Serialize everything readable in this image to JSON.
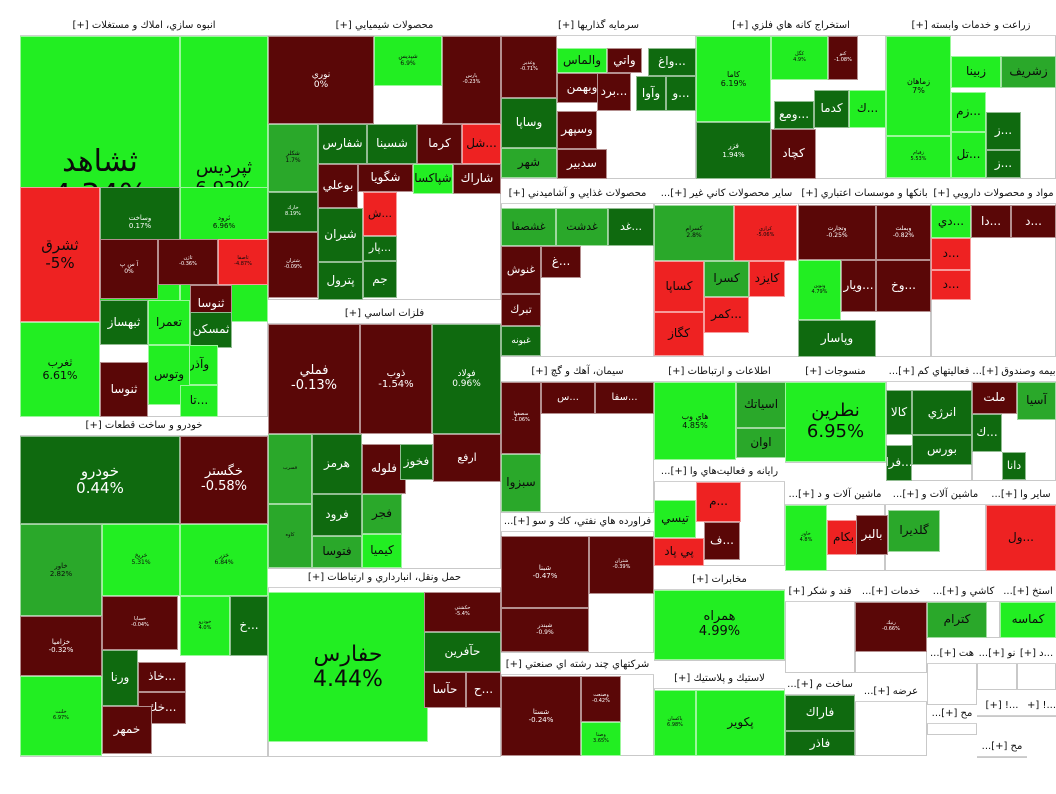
{
  "palette": {
    "bright_green": "#22ee22",
    "green": "#2aa82a",
    "dark_green": "#0f6a0f",
    "dark_red": "#5a0707",
    "red": "#ee2222",
    "mid_red": "#8f1010"
  },
  "sectors": [
    {
      "title": "انبوه سازي، املاك و مستغلات [+]",
      "tiles": [
        {
          "name": "ثشاهد",
          "change": "4.34%",
          "color": "bright_green"
        },
        {
          "name": "ثپرديس",
          "change": "6.92%",
          "color": "bright_green"
        },
        {
          "name": "وساخت",
          "change": "0.17%",
          "color": "dark_green"
        },
        {
          "name": "ثرود",
          "change": "6.96%",
          "color": "bright_green"
        },
        {
          "name": "ثشرق",
          "change": "-5%",
          "color": "red"
        },
        {
          "name": "آ س پ",
          "change": "0%",
          "color": "dark_red"
        },
        {
          "name": "ثنوسا",
          "change": "",
          "color": "dark_red"
        },
        {
          "name": "ثتران",
          "change": "",
          "color": "dark_red"
        },
        {
          "name": "تعمرا",
          "change": "",
          "color": "bright_green"
        },
        {
          "name": "ثمسكن",
          "change": "",
          "color": "dark_green"
        },
        {
          "name": "ثبهساز",
          "change": "",
          "color": "dark_green"
        },
        {
          "name": "ثغرب",
          "change": "6.61%",
          "color": "bright_green"
        },
        {
          "name": "وآذر",
          "change": "",
          "color": "bright_green"
        },
        {
          "name": "وتوس",
          "change": "",
          "color": "bright_green"
        },
        {
          "name": "ثنوسا",
          "change": "",
          "color": "dark_red"
        },
        {
          "name": "...تا",
          "change": "",
          "color": "bright_green"
        },
        {
          "name": "ثاژن",
          "change": "-0.36%",
          "color": "dark_red"
        },
        {
          "name": "ثاصفا",
          "change": "-4.87%",
          "color": "red"
        }
      ]
    },
    {
      "title": "محصولات شيميايي [+]",
      "tiles": [
        {
          "name": "نوري",
          "change": "0%",
          "color": "dark_red"
        },
        {
          "name": "شپديس",
          "change": "6.9%",
          "color": "bright_green"
        },
        {
          "name": "پارس",
          "change": "-0.23%",
          "color": "dark_red"
        },
        {
          "name": "شفارس",
          "change": "",
          "color": "dark_green"
        },
        {
          "name": "شسينا",
          "change": "",
          "color": "dark_green"
        },
        {
          "name": "كرما",
          "change": "",
          "color": "dark_red"
        },
        {
          "name": "...شل",
          "change": "",
          "color": "red"
        },
        {
          "name": "شكلر",
          "change": "1.7%",
          "color": "green"
        },
        {
          "name": "بوعلي",
          "change": "",
          "color": "dark_red"
        },
        {
          "name": "شگويا",
          "change": "",
          "color": "dark_red"
        },
        {
          "name": "شپاكسا",
          "change": "",
          "color": "bright_green"
        },
        {
          "name": "شاراك",
          "change": "",
          "color": "dark_red"
        },
        {
          "name": "خارك",
          "change": "8.19%",
          "color": "dark_green"
        },
        {
          "name": "شيران",
          "change": "",
          "color": "dark_green"
        },
        {
          "name": "...ش",
          "change": "",
          "color": "red"
        },
        {
          "name": "...پار",
          "change": "",
          "color": "dark_green"
        },
        {
          "name": "جم",
          "change": "",
          "color": "dark_green"
        },
        {
          "name": "پترول",
          "change": "",
          "color": "dark_green"
        },
        {
          "name": "شتران",
          "change": "-0.09%",
          "color": "dark_red"
        }
      ]
    },
    {
      "title": "سرمايه گذاريها [+]",
      "tiles": [
        {
          "name": "وغدير",
          "change": "-0.71%",
          "color": "dark_red"
        },
        {
          "name": "والماس",
          "change": "",
          "color": "bright_green"
        },
        {
          "name": "واتي",
          "change": "",
          "color": "dark_red"
        },
        {
          "name": "...واغ",
          "change": "",
          "color": "dark_green"
        },
        {
          "name": "وبهمن",
          "change": "",
          "color": "dark_red"
        },
        {
          "name": "...برد",
          "change": "",
          "color": "dark_red"
        },
        {
          "name": "وآوا",
          "change": "",
          "color": "dark_green"
        },
        {
          "name": "...و",
          "change": "",
          "color": "dark_green"
        },
        {
          "name": "وساپا",
          "change": "",
          "color": "dark_green"
        },
        {
          "name": "وسپهر",
          "change": "",
          "color": "dark_red"
        },
        {
          "name": "شهر",
          "change": "",
          "color": "green"
        },
        {
          "name": "سدبير",
          "change": "",
          "color": "dark_red"
        }
      ]
    },
    {
      "title": "استخراج كانه هاي فلزي [+]",
      "tiles": [
        {
          "name": "كاما",
          "change": "6.19%",
          "color": "bright_green"
        },
        {
          "name": "كگل",
          "change": "4.9%",
          "color": "bright_green"
        },
        {
          "name": "كنو",
          "change": "-1.08%",
          "color": "dark_red"
        },
        {
          "name": "...ومع",
          "change": "",
          "color": "dark_green"
        },
        {
          "name": "كدما",
          "change": "",
          "color": "dark_green"
        },
        {
          "name": "...ك",
          "change": "",
          "color": "bright_green"
        },
        {
          "name": "فزر",
          "change": "1.94%",
          "color": "dark_green"
        },
        {
          "name": "كچاد",
          "change": "",
          "color": "dark_red"
        }
      ]
    },
    {
      "title": "زراعت و خدمات وابسته [+]",
      "tiles": [
        {
          "name": "زماهان",
          "change": "7%",
          "color": "bright_green"
        },
        {
          "name": "زبينا",
          "change": "",
          "color": "bright_green"
        },
        {
          "name": "زشريف",
          "change": "",
          "color": "green"
        },
        {
          "name": "...زم",
          "change": "",
          "color": "bright_green"
        },
        {
          "name": "...ز",
          "change": "",
          "color": "dark_green"
        },
        {
          "name": "زقيام",
          "change": "5.53%",
          "color": "bright_green"
        },
        {
          "name": "...تل",
          "change": "",
          "color": "bright_green"
        },
        {
          "name": "...ز",
          "change": "",
          "color": "dark_green"
        }
      ]
    },
    {
      "title": "محصولات غذايي و آشاميدني [+]",
      "tiles": [
        {
          "name": "غشصفا",
          "change": "",
          "color": "green"
        },
        {
          "name": "غدشت",
          "change": "",
          "color": "green"
        },
        {
          "name": "...غد",
          "change": "",
          "color": "dark_green"
        },
        {
          "name": "...غ",
          "change": "",
          "color": "dark_red"
        },
        {
          "name": "غنوش",
          "change": "",
          "color": "dark_red"
        },
        {
          "name": "تبرك",
          "change": "",
          "color": "dark_red"
        },
        {
          "name": "غبونه",
          "change": "",
          "color": "dark_green"
        }
      ]
    },
    {
      "title": "ساير محصولات كاني غير [+]...",
      "tiles": [
        {
          "name": "كسرام",
          "change": "2.8%",
          "color": "green"
        },
        {
          "name": "كرازي",
          "change": "-5.06%",
          "color": "red"
        },
        {
          "name": "كساپا",
          "change": "",
          "color": "red"
        },
        {
          "name": "كسرا",
          "change": "",
          "color": "green"
        },
        {
          "name": "كايزد",
          "change": "",
          "color": "red"
        },
        {
          "name": "...كمر",
          "change": "",
          "color": "red"
        },
        {
          "name": "كگاز",
          "change": "",
          "color": "red"
        }
      ]
    },
    {
      "title": "بانكها و موسسات اعتباري [+]",
      "tiles": [
        {
          "name": "وتجارت",
          "change": "-0.25%",
          "color": "dark_red"
        },
        {
          "name": "وبملت",
          "change": "-0.82%",
          "color": "dark_red"
        },
        {
          "name": "ونوين",
          "change": "4.79%",
          "color": "bright_green"
        },
        {
          "name": "...وخ",
          "change": "",
          "color": "dark_red"
        },
        {
          "name": "...ويار",
          "change": "",
          "color": "dark_red"
        },
        {
          "name": "وپاسار",
          "change": "",
          "color": "dark_green"
        }
      ]
    },
    {
      "title": "مواد و محصولات دارويي [+]",
      "tiles": [
        {
          "name": "...دي",
          "change": "",
          "color": "bright_green"
        },
        {
          "name": "...دا",
          "change": "",
          "color": "dark_red"
        },
        {
          "name": "...د",
          "change": "",
          "color": "dark_red"
        },
        {
          "name": "...د",
          "change": "",
          "color": "red"
        },
        {
          "name": "...د",
          "change": "",
          "color": "red"
        }
      ]
    },
    {
      "title": "فلزات اساسي [+]",
      "tiles": [
        {
          "name": "فملي",
          "change": "-0.13%",
          "color": "dark_red"
        },
        {
          "name": "ذوب",
          "change": "-1.54%",
          "color": "dark_red"
        },
        {
          "name": "فولاد",
          "change": "0.96%",
          "color": "dark_green"
        },
        {
          "name": "فسرب",
          "change": "",
          "color": "green"
        },
        {
          "name": "هرمز",
          "change": "",
          "color": "dark_green"
        },
        {
          "name": "فلوله",
          "change": "",
          "color": "dark_red"
        },
        {
          "name": "فخوز",
          "change": "",
          "color": "dark_green"
        },
        {
          "name": "ارفع",
          "change": "",
          "color": "dark_red"
        },
        {
          "name": "فرود",
          "change": "",
          "color": "dark_green"
        },
        {
          "name": "فجر",
          "change": "",
          "color": "green"
        },
        {
          "name": "فتوسا",
          "change": "",
          "color": "green"
        },
        {
          "name": "كيميا",
          "change": "",
          "color": "bright_green"
        },
        {
          "name": "كاوه",
          "change": "",
          "color": "green"
        }
      ]
    },
    {
      "title": "سيمان، آهك و گچ [+]",
      "tiles": [
        {
          "name": "سصفها",
          "change": "-1.06%",
          "color": "dark_red"
        },
        {
          "name": "...س",
          "change": "",
          "color": "dark_red"
        },
        {
          "name": "...سفا",
          "change": "",
          "color": "dark_red"
        },
        {
          "name": "سبزوا",
          "change": "",
          "color": "green"
        }
      ]
    },
    {
      "title": "اطلاعات و ارتباطات [+]",
      "tiles": [
        {
          "name": "هاي وب",
          "change": "4.85%",
          "color": "bright_green"
        },
        {
          "name": "اسياتك",
          "change": "",
          "color": "green"
        },
        {
          "name": "اوان",
          "change": "",
          "color": "green"
        }
      ]
    },
    {
      "title": "منسوجات [+]",
      "tiles": [
        {
          "name": "نطرين",
          "change": "6.95%",
          "color": "bright_green"
        }
      ]
    },
    {
      "title": "فعاليتهاي كم [+]...",
      "tiles": [
        {
          "name": "انرژي",
          "change": "",
          "color": "dark_green"
        },
        {
          "name": "كالا",
          "change": "",
          "color": "dark_green"
        },
        {
          "name": "بورس",
          "change": "",
          "color": "dark_green"
        },
        {
          "name": "...فرا",
          "change": "",
          "color": "dark_green"
        }
      ]
    },
    {
      "title": "بيمه وصندوق [+]...",
      "tiles": [
        {
          "name": "ملت",
          "change": "",
          "color": "dark_red"
        },
        {
          "name": "آسيا",
          "change": "",
          "color": "green"
        },
        {
          "name": "...ك",
          "change": "",
          "color": "dark_green"
        },
        {
          "name": "دانا",
          "change": "",
          "color": "dark_green"
        }
      ]
    },
    {
      "title": "رايانه و فعاليت‌هاي وا [+]...",
      "tiles": [
        {
          "name": "...م",
          "change": "",
          "color": "red"
        },
        {
          "name": "تيسي",
          "change": "",
          "color": "bright_green"
        },
        {
          "name": "...ف",
          "change": "",
          "color": "dark_red"
        },
        {
          "name": "پي پاد",
          "change": "",
          "color": "red"
        }
      ]
    },
    {
      "title": "ماشين آلات و د [+]...",
      "tiles": [
        {
          "name": "خاور",
          "change": "4.8%",
          "color": "bright_green"
        },
        {
          "name": "بكام",
          "change": "",
          "color": "red"
        }
      ]
    },
    {
      "title": "ماشين آلات و [+]...",
      "tiles": [
        {
          "name": "بالبر",
          "change": "",
          "color": "dark_red"
        },
        {
          "name": "گلديرا",
          "change": "",
          "color": "green"
        }
      ]
    },
    {
      "title": "ساير وا [+]...",
      "tiles": [
        {
          "name": "...ول",
          "change": "",
          "color": "red"
        }
      ]
    },
    {
      "title": "خودرو و ساخت قطعات [+]",
      "tiles": [
        {
          "name": "خودرو",
          "change": "0.44%",
          "color": "dark_green"
        },
        {
          "name": "خگستر",
          "change": "-0.58%",
          "color": "dark_red"
        },
        {
          "name": "خاور",
          "change": "2.82%",
          "color": "green"
        },
        {
          "name": "خريخ",
          "change": "5.31%",
          "color": "bright_green"
        },
        {
          "name": "خزر",
          "change": "6.84%",
          "color": "bright_green"
        },
        {
          "name": "خساپا",
          "change": "-0.04%",
          "color": "dark_red"
        },
        {
          "name": "خودرو",
          "change": "4.0%",
          "color": "bright_green"
        },
        {
          "name": "...خ",
          "change": "",
          "color": "dark_green"
        },
        {
          "name": "خزاميا",
          "change": "-0.32%",
          "color": "dark_red"
        },
        {
          "name": "ورنا",
          "change": "",
          "color": "dark_green"
        },
        {
          "name": "...خاذ",
          "change": "",
          "color": "dark_red"
        },
        {
          "name": "...خك",
          "change": "",
          "color": "dark_red"
        },
        {
          "name": "خمهر",
          "change": "",
          "color": "dark_red"
        },
        {
          "name": "خلنت",
          "change": "6.97%",
          "color": "bright_green"
        }
      ]
    },
    {
      "title": "حمل ونقل، انبارداري و ارتباطات [+]",
      "tiles": [
        {
          "name": "حفارس",
          "change": "4.44%",
          "color": "bright_green"
        },
        {
          "name": "حكشتي",
          "change": "-5.4%",
          "color": "dark_red"
        },
        {
          "name": "حآفرين",
          "change": "",
          "color": "dark_green"
        },
        {
          "name": "حآسا",
          "change": "",
          "color": "dark_red"
        },
        {
          "name": "...ح",
          "change": "",
          "color": "dark_red"
        }
      ]
    },
    {
      "title": "فراورده هاي نفتي، كك و سو [+]...",
      "tiles": [
        {
          "name": "شبنا",
          "change": "-0.47%",
          "color": "dark_red"
        },
        {
          "name": "شتران",
          "change": "-0.39%",
          "color": "dark_red"
        },
        {
          "name": "شبندر",
          "change": "-0.9%",
          "color": "dark_red"
        }
      ]
    },
    {
      "title": "شركتهاي چند رشته اي صنعتي [+]",
      "tiles": [
        {
          "name": "شستا",
          "change": "-0.24%",
          "color": "dark_red"
        },
        {
          "name": "وصنعت",
          "change": "-0.42%",
          "color": "dark_red"
        },
        {
          "name": "وصنا",
          "change": "3.65%",
          "color": "bright_green"
        }
      ]
    },
    {
      "title": "مخابرات [+]",
      "tiles": [
        {
          "name": "همراه",
          "change": "4.99%",
          "color": "bright_green"
        }
      ]
    },
    {
      "title": "لاستيك و پلاستيك [+]",
      "tiles": [
        {
          "name": "پاكسان",
          "change": "6.98%",
          "color": "bright_green"
        },
        {
          "name": "پكوير",
          "change": "",
          "color": "bright_green"
        }
      ]
    },
    {
      "title": "ساخت م [+]...",
      "tiles": [
        {
          "name": "فاراك",
          "change": "",
          "color": "dark_green"
        },
        {
          "name": "فاذر",
          "change": "",
          "color": "dark_green"
        }
      ]
    },
    {
      "title": "قند و شكر [+]",
      "tiles": []
    },
    {
      "title": "خدمات [+]...",
      "tiles": [
        {
          "name": "رنيك",
          "change": "-0.66%",
          "color": "dark_red"
        }
      ]
    },
    {
      "title": "كاشي و [+]...",
      "tiles": [
        {
          "name": "كترام",
          "change": "",
          "color": "green"
        }
      ]
    },
    {
      "title": "استخ [+]...",
      "tiles": [
        {
          "name": "كماسه",
          "change": "",
          "color": "bright_green"
        }
      ]
    },
    {
      "title": "هت [+]...",
      "tiles": []
    },
    {
      "title": "نو [+]...",
      "tiles": []
    },
    {
      "title": "...د [+]",
      "tiles": []
    },
    {
      "title": "عرضه [+]...",
      "tiles": []
    },
    {
      "title": "مح [+]...",
      "tiles": []
    },
    {
      "title": "مح [+]...",
      "tiles": []
    },
    {
      "title": "...! [+]",
      "tiles": []
    },
    {
      "title": "...! [+]",
      "tiles": []
    }
  ]
}
